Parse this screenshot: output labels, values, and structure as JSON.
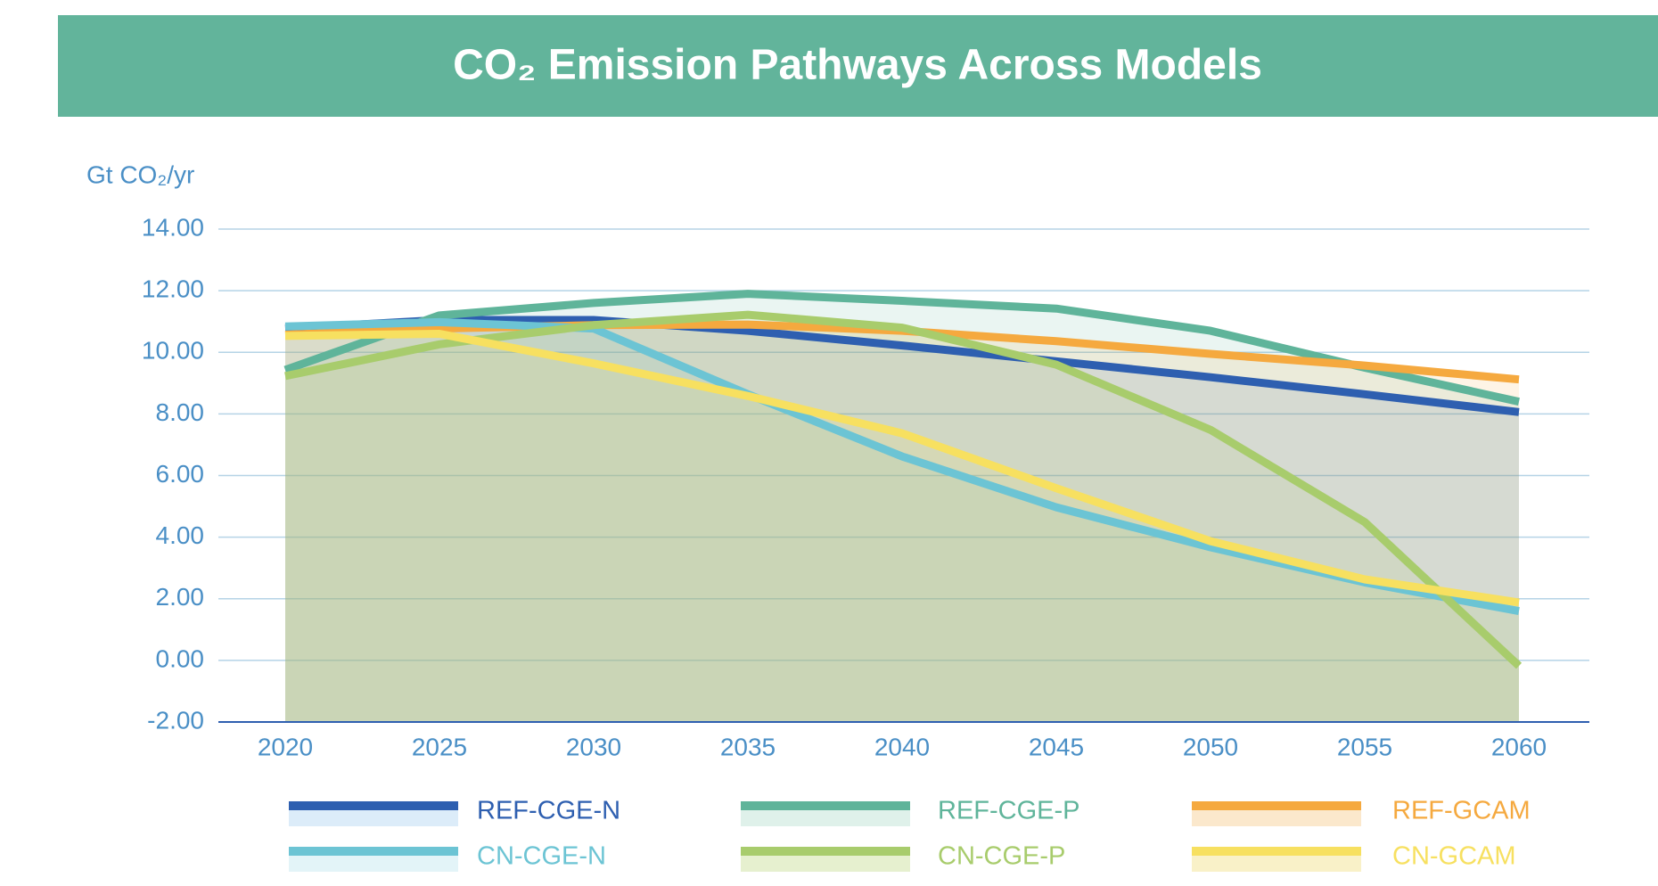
{
  "chart_data": {
    "type": "line",
    "title": "CO₂ Emission Pathways Across Models",
    "y_label": "Gt CO₂/yr",
    "categories": [
      "2020",
      "2025",
      "2030",
      "2035",
      "2040",
      "2045",
      "2050",
      "2055",
      "2060"
    ],
    "ylim": [
      -2,
      14
    ],
    "yticks": [
      {
        "value": 14,
        "label": "14.00"
      },
      {
        "value": 12,
        "label": "12.00"
      },
      {
        "value": 10,
        "label": "10.00"
      },
      {
        "value": 8,
        "label": "8.00"
      },
      {
        "value": 6,
        "label": "6.00"
      },
      {
        "value": 4,
        "label": "4.00"
      },
      {
        "value": 2,
        "label": "2.00"
      },
      {
        "value": 0,
        "label": "0.00"
      },
      {
        "value": -2,
        "label": "-2.00"
      }
    ],
    "grid": true,
    "series": [
      {
        "name": "REF-CGE-N",
        "color": "#2e5fb0",
        "fill": "#dcecf9",
        "values": [
          10.77,
          11.05,
          11.05,
          10.7,
          10.22,
          9.71,
          9.19,
          8.64,
          8.06
        ]
      },
      {
        "name": "REF-CGE-P",
        "color": "#5fb49a",
        "fill": "#dff1ea",
        "values": [
          9.43,
          11.2,
          11.6,
          11.9,
          11.67,
          11.42,
          10.7,
          9.5,
          8.4
        ]
      },
      {
        "name": "REF-GCAM",
        "color": "#f5a93f",
        "fill": "#fbe8cc",
        "values": [
          10.57,
          10.77,
          10.88,
          10.9,
          10.7,
          10.36,
          9.95,
          9.57,
          9.12
        ]
      },
      {
        "name": "CN-CGE-N",
        "color": "#6cc4d4",
        "fill": "#e3f4f8",
        "values": [
          10.84,
          10.98,
          10.77,
          8.64,
          6.62,
          4.97,
          3.67,
          2.53,
          1.6
        ]
      },
      {
        "name": "CN-CGE-P",
        "color": "#a8cc6c",
        "fill": "#e6f0cf",
        "values": [
          9.23,
          10.26,
          10.88,
          11.22,
          10.8,
          9.6,
          7.48,
          4.49,
          -0.18
        ]
      },
      {
        "name": "CN-GCAM",
        "color": "#f7e060",
        "fill": "#f9f1c8",
        "values": [
          10.53,
          10.6,
          9.64,
          8.58,
          7.37,
          5.59,
          3.87,
          2.63,
          1.88
        ]
      }
    ]
  }
}
